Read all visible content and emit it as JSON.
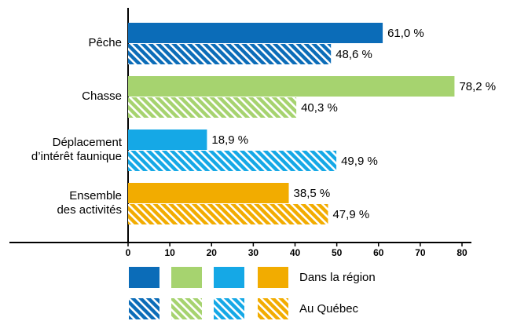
{
  "chart_data": {
    "type": "hbar",
    "categories": [
      [
        "Pêche"
      ],
      [
        "Chasse"
      ],
      [
        "Déplacement",
        "d’intérêt faunique"
      ],
      [
        "Ensemble",
        "des activités"
      ]
    ],
    "colors": [
      "#0b6cb8",
      "#a6d36f",
      "#15a8e6",
      "#f2ac00"
    ],
    "series": [
      {
        "name": "Dans la région",
        "hatched": false,
        "values": [
          61.0,
          78.2,
          18.9,
          38.5
        ],
        "value_labels": [
          "61,0 %",
          "78,2 %",
          "18,9 %",
          "38,5 %"
        ]
      },
      {
        "name": "Au Québec",
        "hatched": true,
        "values": [
          48.6,
          40.3,
          49.9,
          47.9
        ],
        "value_labels": [
          "48,6 %",
          "40,3 %",
          "49,9 %",
          "47,9 %"
        ]
      }
    ],
    "xlim": [
      0,
      80
    ],
    "xticks": [
      0,
      10,
      20,
      30,
      40,
      50,
      60,
      70,
      80
    ]
  }
}
